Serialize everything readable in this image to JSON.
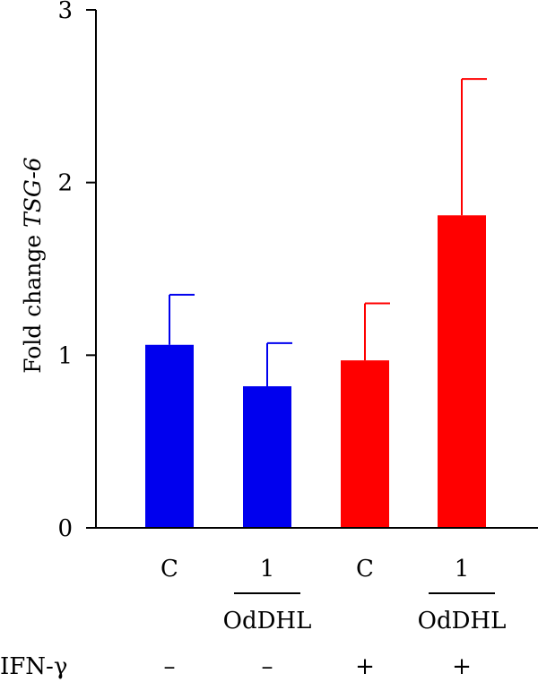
{
  "chart_data": {
    "type": "bar",
    "ylabel_prefix": "Fold change ",
    "ylabel_gene": "TSG-6",
    "ylim": [
      0,
      3
    ],
    "yticks": [
      0,
      1,
      2,
      3
    ],
    "categories": [
      "C",
      "1",
      "C",
      "1"
    ],
    "values": [
      1.06,
      0.82,
      0.97,
      1.81
    ],
    "errors": [
      0.29,
      0.25,
      0.33,
      0.79
    ],
    "colors": [
      "#0000ee",
      "#0000ee",
      "#ff0000",
      "#ff0000"
    ],
    "group_labels": [
      "OdDHL",
      "OdDHL"
    ],
    "condition_label": "IFN-γ",
    "condition_values": [
      "–",
      "–",
      "+",
      "+"
    ]
  }
}
